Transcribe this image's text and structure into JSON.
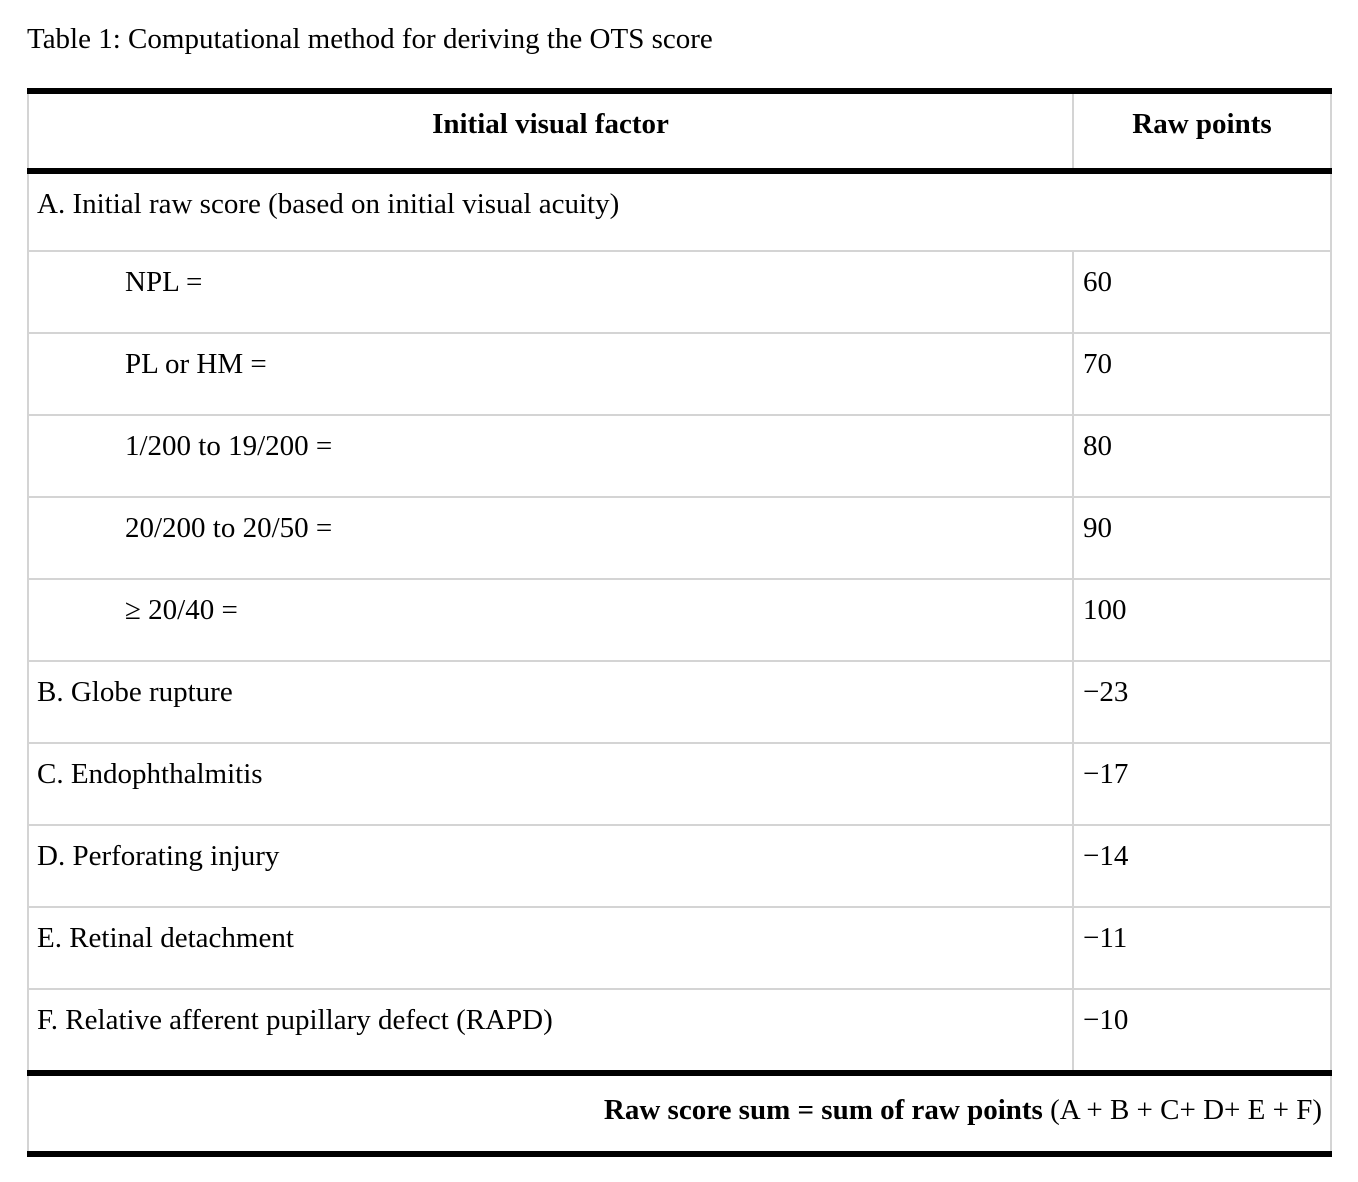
{
  "title": "Table 1: Computational method for deriving the OTS score",
  "table": {
    "columns": {
      "factor": "Initial visual factor",
      "points": "Raw points"
    },
    "section_a": "A. Initial raw score (based on initial visual acuity)",
    "rows": [
      {
        "label": "NPL =",
        "points": "60"
      },
      {
        "label": "PL or HM =",
        "points": "70"
      },
      {
        "label": "1/200 to 19/200 =",
        "points": "80"
      },
      {
        "label": "20/200 to 20/50 =",
        "points": "90"
      },
      {
        "label": "≥ 20/40 =",
        "points": "100"
      },
      {
        "label": "B. Globe rupture",
        "points": "−23"
      },
      {
        "label": "C. Endophthalmitis",
        "points": "−17"
      },
      {
        "label": "D. Perforating injury",
        "points": "−14"
      },
      {
        "label": "E. Retinal detachment",
        "points": "−11"
      },
      {
        "label": "F. Relative afferent pupillary defect (RAPD)",
        "points": "−10"
      }
    ],
    "footer": {
      "bold": "Raw score sum = sum of raw points",
      "formula": "(A + B + C+ D+ E + F)"
    }
  },
  "colors": {
    "grid_line": "#d4d4d4",
    "rule_line": "#000000",
    "text": "#000000",
    "background": "#ffffff"
  }
}
